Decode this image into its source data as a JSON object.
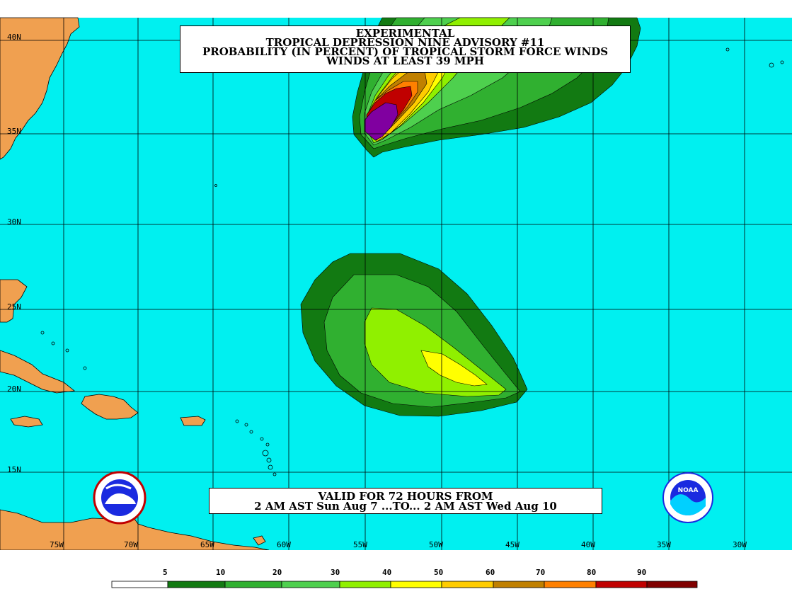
{
  "title": {
    "line1": "EXPERIMENTAL",
    "line2": "TROPICAL DEPRESSION NINE ADVISORY #11",
    "line3": "PROBABILITY (IN PERCENT) OF TROPICAL STORM FORCE WINDS",
    "line4": "WINDS AT LEAST 39 MPH"
  },
  "valid": {
    "line1": "VALID FOR 72 HOURS FROM",
    "line2": "2 AM AST Sun Aug 7 ...TO... 2 AM AST Wed Aug 10"
  },
  "latitude_labels": [
    "40N",
    "35N",
    "30N",
    "25N",
    "20N",
    "15N"
  ],
  "longitude_labels": [
    "75W",
    "70W",
    "65W",
    "60W",
    "55W",
    "50W",
    "45W",
    "40W",
    "35W",
    "30W"
  ],
  "legend": {
    "ticks": [
      "5",
      "10",
      "20",
      "30",
      "40",
      "50",
      "60",
      "70",
      "80",
      "90"
    ],
    "colors": [
      "#ffffff",
      "#127a12",
      "#30b030",
      "#4ed04e",
      "#90f000",
      "#ffff00",
      "#ffcc00",
      "#c08000",
      "#ff8000",
      "#c00000",
      "#800000",
      "#8000a0"
    ]
  },
  "colors": {
    "ocean": "#00f0f0",
    "land": "#f0a050",
    "grid": "#000000"
  },
  "logos": {
    "left": "NATIONAL WEATHER SERVICE",
    "right": "NOAA"
  }
}
